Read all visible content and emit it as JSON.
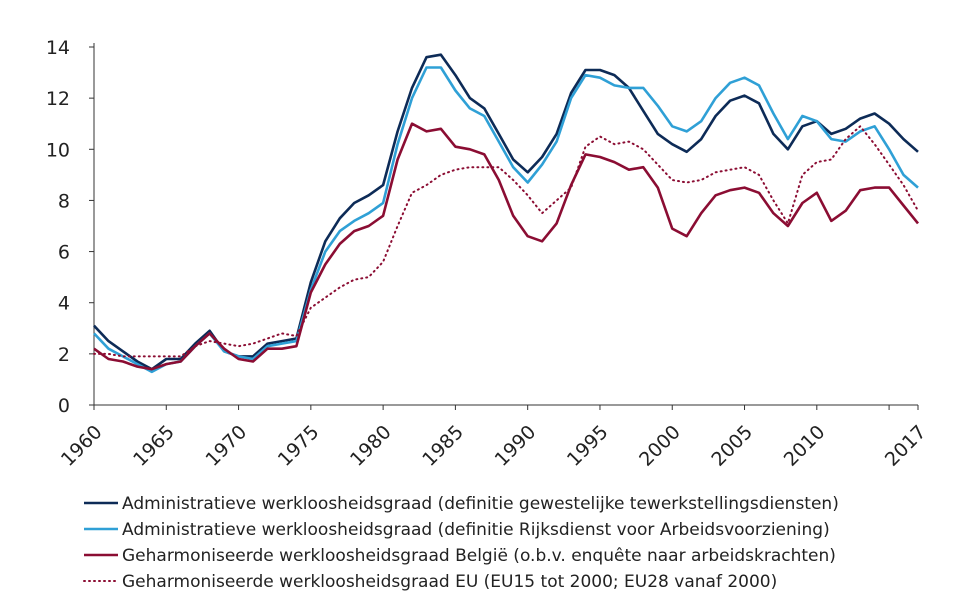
{
  "chart_data": {
    "type": "line",
    "title": "",
    "xlabel": "",
    "ylabel": "",
    "xlim": [
      1960,
      2017
    ],
    "ylim": [
      0,
      14
    ],
    "yticks": [
      0,
      2,
      4,
      6,
      8,
      10,
      12,
      14
    ],
    "xticks": [
      1960,
      1965,
      1970,
      1975,
      1980,
      1985,
      1990,
      1995,
      2000,
      2005,
      2010,
      2017
    ],
    "grid": false,
    "legend_position": "bottom",
    "x": [
      1960,
      1961,
      1962,
      1963,
      1964,
      1965,
      1966,
      1967,
      1968,
      1969,
      1970,
      1971,
      1972,
      1973,
      1974,
      1975,
      1976,
      1977,
      1978,
      1979,
      1980,
      1981,
      1982,
      1983,
      1984,
      1985,
      1986,
      1987,
      1988,
      1989,
      1990,
      1991,
      1992,
      1993,
      1994,
      1995,
      1996,
      1997,
      1998,
      1999,
      2000,
      2001,
      2002,
      2003,
      2004,
      2005,
      2006,
      2007,
      2008,
      2009,
      2010,
      2011,
      2012,
      2013,
      2014,
      2015,
      2016,
      2017
    ],
    "series": [
      {
        "name": "Administratieve werkloosheidsgraad (definitie gewestelijke tewerkstellingsdiensten)",
        "color": "#0d2b57",
        "dash": "solid",
        "values": [
          3.1,
          2.5,
          2.1,
          1.7,
          1.4,
          1.8,
          1.8,
          2.4,
          2.9,
          2.1,
          1.9,
          1.9,
          2.4,
          2.5,
          2.6,
          4.8,
          6.4,
          7.3,
          7.9,
          8.2,
          8.6,
          10.7,
          12.4,
          13.6,
          13.7,
          12.9,
          12.0,
          11.6,
          10.6,
          9.6,
          9.1,
          9.7,
          10.6,
          12.2,
          13.1,
          13.1,
          12.9,
          12.4,
          11.5,
          10.6,
          10.2,
          9.9,
          10.4,
          11.3,
          11.9,
          12.1,
          11.8,
          10.6,
          10.0,
          10.9,
          11.1,
          10.6,
          10.8,
          11.2,
          11.4,
          11.0,
          10.4,
          9.9
        ]
      },
      {
        "name": "Administratieve werkloosheidsgraad (definitie Rijksdienst voor Arbeidsvoorziening)",
        "color": "#2fa0d6",
        "dash": "solid",
        "values": [
          2.8,
          2.2,
          1.9,
          1.6,
          1.3,
          1.6,
          1.7,
          2.3,
          2.8,
          2.1,
          1.9,
          1.8,
          2.3,
          2.4,
          2.5,
          4.5,
          6.0,
          6.8,
          7.2,
          7.5,
          7.9,
          10.2,
          12.0,
          13.2,
          13.2,
          12.3,
          11.6,
          11.3,
          10.3,
          9.3,
          8.7,
          9.4,
          10.3,
          12.0,
          12.9,
          12.8,
          12.5,
          12.4,
          12.4,
          11.7,
          10.9,
          10.7,
          11.1,
          12.0,
          12.6,
          12.8,
          12.5,
          11.4,
          10.4,
          11.3,
          11.1,
          10.4,
          10.3,
          10.7,
          10.9,
          10.0,
          9.0,
          8.5
        ]
      },
      {
        "name": "Geharmoniseerde werkloosheidsgraad België (o.b.v. enquête naar arbeidskrachten)",
        "color": "#8b0d33",
        "dash": "solid",
        "values": [
          2.2,
          1.8,
          1.7,
          1.5,
          1.4,
          1.6,
          1.7,
          2.3,
          2.8,
          2.2,
          1.8,
          1.7,
          2.2,
          2.2,
          2.3,
          4.4,
          5.5,
          6.3,
          6.8,
          7.0,
          7.4,
          9.6,
          11.0,
          10.7,
          10.8,
          10.1,
          10.0,
          9.8,
          8.8,
          7.4,
          6.6,
          6.4,
          7.1,
          8.6,
          9.8,
          9.7,
          9.5,
          9.2,
          9.3,
          8.5,
          6.9,
          6.6,
          7.5,
          8.2,
          8.4,
          8.5,
          8.3,
          7.5,
          7.0,
          7.9,
          8.3,
          7.2,
          7.6,
          8.4,
          8.5,
          8.5,
          7.8,
          7.1
        ]
      },
      {
        "name": "Geharmoniseerde werkloosheidsgraad EU (EU15 tot 2000; EU28 vanaf 2000)",
        "color": "#8b0d33",
        "dash": "dotted",
        "values": [
          2.0,
          2.0,
          1.9,
          1.9,
          1.9,
          1.9,
          1.9,
          2.3,
          2.5,
          2.4,
          2.3,
          2.4,
          2.6,
          2.8,
          2.7,
          3.8,
          4.2,
          4.6,
          4.9,
          5.0,
          5.6,
          7.0,
          8.3,
          8.6,
          9.0,
          9.2,
          9.3,
          9.3,
          9.3,
          8.8,
          8.2,
          7.5,
          8.0,
          8.5,
          10.1,
          10.5,
          10.2,
          10.3,
          10.0,
          9.4,
          8.8,
          8.7,
          8.8,
          9.1,
          9.2,
          9.3,
          9.0,
          8.0,
          7.1,
          9.0,
          9.5,
          9.6,
          10.4,
          10.9,
          10.2,
          9.4,
          8.6,
          7.6
        ]
      }
    ]
  }
}
